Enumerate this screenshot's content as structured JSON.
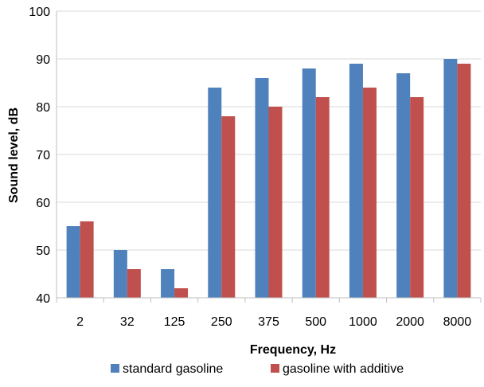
{
  "chart_data": {
    "type": "bar",
    "title": "",
    "xlabel": "Frequency, Hz",
    "ylabel": "Sound level, dB",
    "ylim": [
      40,
      100
    ],
    "yticks": [
      40,
      50,
      60,
      70,
      80,
      90,
      100
    ],
    "categories": [
      "2",
      "32",
      "125",
      "250",
      "375",
      "500",
      "1000",
      "2000",
      "8000"
    ],
    "series": [
      {
        "name": "standard gasoline",
        "color": "#4f81bd",
        "values": [
          55,
          50,
          46,
          84,
          86,
          88,
          89,
          87,
          90
        ]
      },
      {
        "name": "gasoline with additive",
        "color": "#c0504d",
        "values": [
          56,
          46,
          42,
          78,
          80,
          82,
          84,
          82,
          89
        ]
      }
    ],
    "grid": true,
    "legend_position": "bottom"
  }
}
